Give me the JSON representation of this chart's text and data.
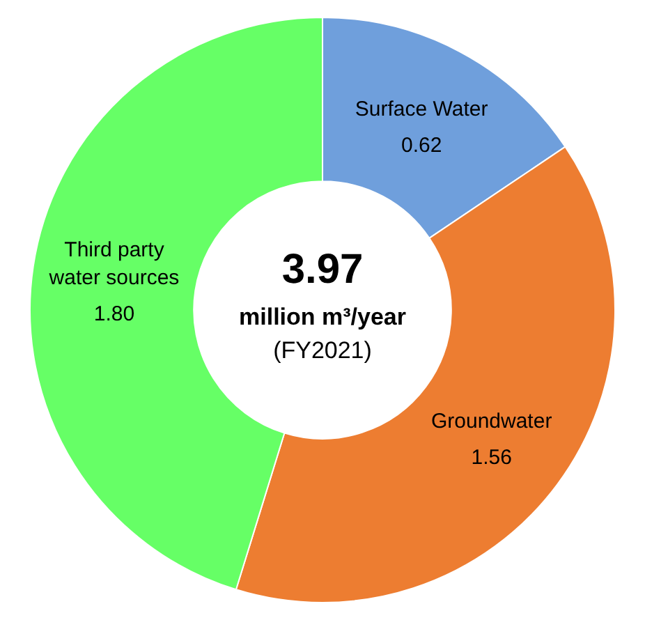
{
  "chart_data": {
    "type": "donut",
    "categories": [
      "Surface Water",
      "Groundwater",
      "Third party water sources"
    ],
    "values": [
      0.62,
      1.56,
      1.8
    ],
    "colors": [
      "#6f9fdc",
      "#ed7d31",
      "#66ff66"
    ],
    "value_labels": [
      "0.62",
      "1.56",
      "1.80"
    ],
    "legend": false,
    "annotations": [
      "3.97",
      "million m³/year",
      "(FY2021)"
    ]
  }
}
